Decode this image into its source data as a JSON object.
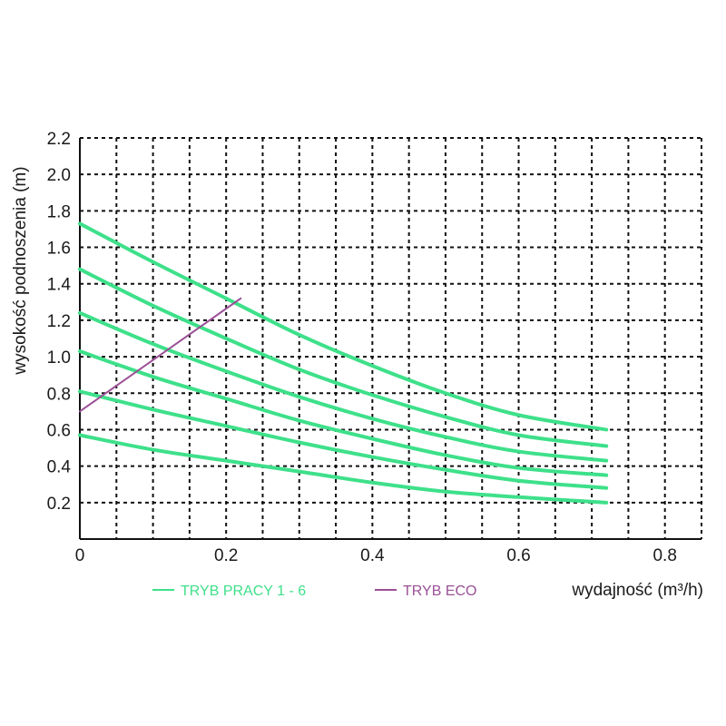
{
  "chart_data": {
    "type": "line",
    "xlabel": "wydajność (m³/h)",
    "ylabel": "wysokość podnoszenia (m)",
    "xlim": [
      0,
      0.85
    ],
    "ylim": [
      0,
      2.2
    ],
    "x_ticks": [
      "0",
      "0.2",
      "0.4",
      "0.6",
      "0.8"
    ],
    "y_ticks": [
      "0.2",
      "0.4",
      "0.6",
      "0.8",
      "1.0",
      "1.2",
      "1.4",
      "1.6",
      "1.8",
      "2.0",
      "2.2"
    ],
    "grid": true,
    "legend_position": "bottom",
    "legend": [
      {
        "label": "TRYB PRACY 1 - 6",
        "color": "#3ee08a"
      },
      {
        "label": "TRYB ECO",
        "color": "#9b4f96"
      }
    ],
    "series": [
      {
        "group": "TRYB PRACY 1 - 6",
        "color": "#3ee08a",
        "x": [
          0.0,
          0.1,
          0.2,
          0.3,
          0.4,
          0.5,
          0.6,
          0.72
        ],
        "y": [
          1.73,
          1.52,
          1.32,
          1.12,
          0.95,
          0.8,
          0.68,
          0.6
        ]
      },
      {
        "group": "TRYB PRACY 1 - 6",
        "color": "#3ee08a",
        "x": [
          0.0,
          0.1,
          0.2,
          0.3,
          0.4,
          0.5,
          0.6,
          0.72
        ],
        "y": [
          1.48,
          1.28,
          1.1,
          0.93,
          0.79,
          0.67,
          0.57,
          0.51
        ]
      },
      {
        "group": "TRYB PRACY 1 - 6",
        "color": "#3ee08a",
        "x": [
          0.0,
          0.1,
          0.2,
          0.3,
          0.4,
          0.5,
          0.6,
          0.72
        ],
        "y": [
          1.24,
          1.07,
          0.92,
          0.78,
          0.66,
          0.56,
          0.48,
          0.43
        ]
      },
      {
        "group": "TRYB PRACY 1 - 6",
        "color": "#3ee08a",
        "x": [
          0.0,
          0.1,
          0.2,
          0.3,
          0.4,
          0.5,
          0.6,
          0.72
        ],
        "y": [
          1.03,
          0.89,
          0.77,
          0.65,
          0.55,
          0.46,
          0.39,
          0.35
        ]
      },
      {
        "group": "TRYB PRACY 1 - 6",
        "color": "#3ee08a",
        "x": [
          0.0,
          0.1,
          0.2,
          0.3,
          0.4,
          0.5,
          0.6,
          0.72
        ],
        "y": [
          0.81,
          0.71,
          0.62,
          0.53,
          0.45,
          0.38,
          0.32,
          0.28
        ]
      },
      {
        "group": "TRYB PRACY 1 - 6",
        "color": "#3ee08a",
        "x": [
          0.0,
          0.1,
          0.2,
          0.3,
          0.4,
          0.5,
          0.6,
          0.72
        ],
        "y": [
          0.57,
          0.49,
          0.43,
          0.37,
          0.31,
          0.26,
          0.23,
          0.2
        ]
      },
      {
        "group": "TRYB ECO",
        "color": "#9b4f96",
        "x": [
          0.0,
          0.22
        ],
        "y": [
          0.7,
          1.32
        ]
      }
    ]
  }
}
